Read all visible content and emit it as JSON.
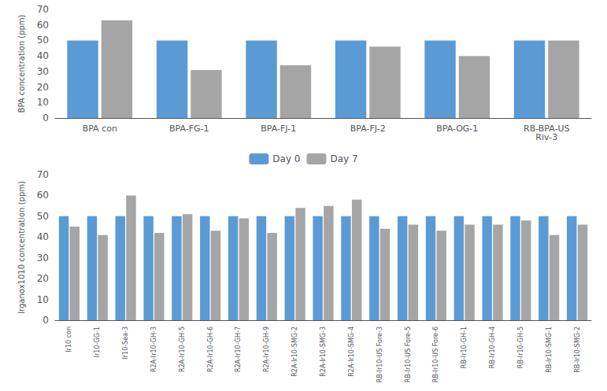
{
  "chart_data": [
    {
      "type": "bar",
      "categories": [
        "BPA con",
        "BPA-FG-1",
        "BPA-FJ-1",
        "BPA-FJ-2",
        "BPA-OG-1",
        "RB-BPA-US\nRiv-3"
      ],
      "series": [
        {
          "name": "Day 0",
          "color": "#5B9BD5",
          "values": [
            50,
            50,
            50,
            50,
            50,
            50
          ]
        },
        {
          "name": "Day 7",
          "color": "#A5A5A5",
          "values": [
            63,
            31,
            34,
            46,
            40,
            50
          ]
        }
      ],
      "ylabel": "BPA concentration (ppm)",
      "ylim": [
        0,
        70
      ],
      "yticks": [
        0,
        10,
        20,
        30,
        40,
        50,
        60,
        70
      ],
      "grid": false
    },
    {
      "type": "bar",
      "categories": [
        "Ir10 con",
        "Ir10-GG-1",
        "Ir10-Sea-3",
        "R2A-Ir10-GH-3",
        "R2A-Ir10-GH-5",
        "R2A-Ir10-GH-6",
        "R2A-Ir10-GH-7",
        "R2A-Ir10-GH-9",
        "R2A-Ir10-SMG-2",
        "R2A-Ir10-SMG-3",
        "R2A-Ir10-SMG-4",
        "RB-Ir10-US Fore-3",
        "RB-Ir10-US Fore-5",
        "RB-Ir10-US Fore-6",
        "RB-Ir10-GH-1",
        "RB-Ir10-GH-4",
        "RB-Ir10-GH-5",
        "RB-Ir10-SMG-1",
        "RB-Ir10-SMG-2"
      ],
      "series": [
        {
          "name": "Day 0",
          "color": "#5B9BD5",
          "values": [
            50,
            50,
            50,
            50,
            50,
            50,
            50,
            50,
            50,
            50,
            50,
            50,
            50,
            50,
            50,
            50,
            50,
            50,
            50
          ]
        },
        {
          "name": "Day 7",
          "color": "#A5A5A5",
          "values": [
            45,
            41,
            60,
            42,
            51,
            43,
            49,
            42,
            54,
            55,
            58,
            44,
            46,
            43,
            46,
            46,
            48,
            41,
            46
          ]
        }
      ],
      "ylabel": "Irganox1010 concentration (ppm)",
      "ylim": [
        0,
        70
      ],
      "yticks": [
        0,
        10,
        20,
        30,
        40,
        50,
        60,
        70
      ],
      "grid": false,
      "legend": "top"
    }
  ]
}
